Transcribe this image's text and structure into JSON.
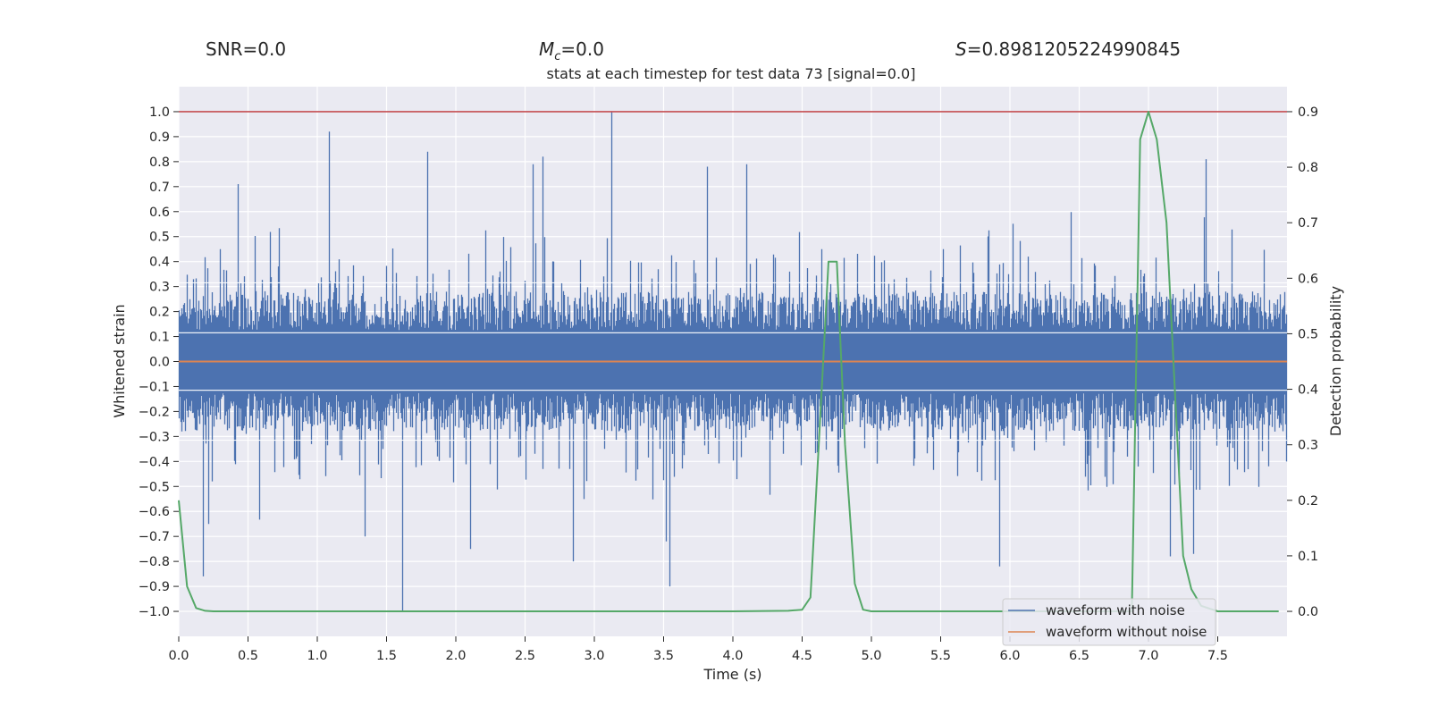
{
  "chart_data": {
    "type": "line",
    "title": "stats at each timestep for test data 73 [signal=0.0]",
    "header": {
      "snr": "SNR=0.0",
      "mc_symbol": "M",
      "mc_subscript": "c",
      "mc_value": "=0.0",
      "s_symbol": "S",
      "s_value": "=0.8981205224990845"
    },
    "xlabel": "Time (s)",
    "ylabel": "Whitened strain",
    "y2label": "Detection probability",
    "xlim": [
      0.0,
      8.0
    ],
    "ylim": [
      -1.1,
      1.1
    ],
    "y2lim": [
      -0.045,
      0.945
    ],
    "xticks": [
      "0.0",
      "0.5",
      "1.0",
      "1.5",
      "2.0",
      "2.5",
      "3.0",
      "3.5",
      "4.0",
      "4.5",
      "5.0",
      "5.5",
      "6.0",
      "6.5",
      "7.0",
      "7.5"
    ],
    "yticks": [
      "1.0",
      "0.9",
      "0.8",
      "0.7",
      "0.6",
      "0.5",
      "0.4",
      "0.3",
      "0.2",
      "0.1",
      "0.0",
      "−0.1",
      "−0.2",
      "−0.3",
      "−0.4",
      "−0.5",
      "−0.6",
      "−0.7",
      "−0.8",
      "−0.9",
      "−1.0"
    ],
    "y2ticks": [
      "0.9",
      "0.8",
      "0.7",
      "0.6",
      "0.5",
      "0.4",
      "0.3",
      "0.2",
      "0.1",
      "0.0"
    ],
    "threshold": {
      "value": 1.0,
      "color": "#c44e52"
    },
    "series": [
      {
        "name": "waveform with noise",
        "color": "#4c72b0",
        "axis": "left",
        "kind": "noise",
        "envelope": 0.28,
        "spikes": [
          {
            "x": 0.43,
            "y": 0.71
          },
          {
            "x": 1.09,
            "y": 0.92
          },
          {
            "x": 1.8,
            "y": 0.84
          },
          {
            "x": 2.56,
            "y": 0.79
          },
          {
            "x": 2.63,
            "y": 0.82
          },
          {
            "x": 3.13,
            "y": 1.0
          },
          {
            "x": 3.82,
            "y": 0.78
          },
          {
            "x": 4.1,
            "y": 0.79
          },
          {
            "x": 7.42,
            "y": 0.81
          },
          {
            "x": 0.18,
            "y": -0.86
          },
          {
            "x": 1.62,
            "y": -1.0
          },
          {
            "x": 3.55,
            "y": -0.9
          },
          {
            "x": 2.85,
            "y": -0.8
          },
          {
            "x": 2.11,
            "y": -0.75
          },
          {
            "x": 3.52,
            "y": -0.72
          },
          {
            "x": 5.93,
            "y": -0.82
          },
          {
            "x": 7.16,
            "y": -0.78
          },
          {
            "x": 7.33,
            "y": -0.77
          },
          {
            "x": 1.35,
            "y": -0.7
          },
          {
            "x": 0.22,
            "y": -0.65
          }
        ]
      },
      {
        "name": "waveform without noise",
        "color": "#dd8452",
        "axis": "left",
        "kind": "line",
        "x": [
          0.0,
          8.0
        ],
        "y": [
          0.0,
          0.0
        ]
      },
      {
        "name": "detection probability",
        "color": "#55a868",
        "axis": "right",
        "kind": "line",
        "x": [
          0.0,
          0.06,
          0.125,
          0.19,
          0.25,
          0.5,
          1.0,
          2.0,
          3.0,
          4.0,
          4.4,
          4.5,
          4.56,
          4.62,
          4.69,
          4.75,
          4.81,
          4.88,
          4.94,
          5.0,
          5.5,
          6.0,
          6.5,
          6.88,
          6.94,
          7.0,
          7.06,
          7.13,
          7.19,
          7.25,
          7.31,
          7.38,
          7.5,
          7.94
        ],
        "y": [
          0.2,
          0.045,
          0.006,
          0.001,
          0.0,
          0.0,
          0.0,
          0.0,
          0.0,
          0.0,
          0.001,
          0.003,
          0.025,
          0.3,
          0.63,
          0.63,
          0.3,
          0.05,
          0.003,
          0.0,
          0.0,
          0.0,
          0.0,
          0.0,
          0.85,
          0.9,
          0.85,
          0.7,
          0.4,
          0.1,
          0.04,
          0.01,
          0.0,
          0.0
        ]
      }
    ],
    "legend": {
      "position": "bottom-right",
      "entries": [
        {
          "label": "waveform with noise",
          "color": "#4c72b0"
        },
        {
          "label": "waveform without noise",
          "color": "#dd8452"
        }
      ]
    }
  }
}
